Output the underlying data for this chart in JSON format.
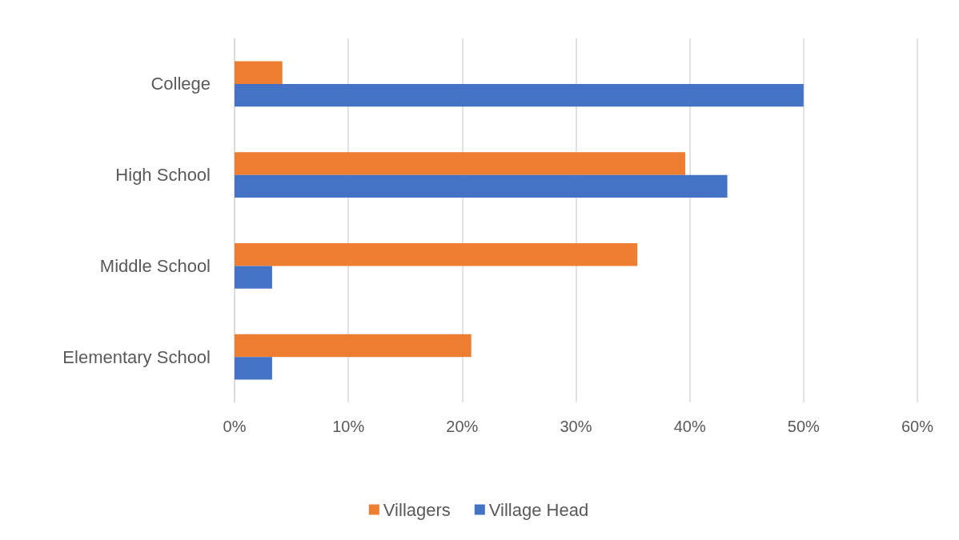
{
  "chart_data": {
    "type": "bar",
    "orientation": "horizontal",
    "categories": [
      "College",
      "High School",
      "Middle School",
      "Elementary School"
    ],
    "series": [
      {
        "name": "Villagers",
        "color": "#ed7d31",
        "values": [
          4.2,
          39.6,
          35.4,
          20.8
        ]
      },
      {
        "name": "Village Head",
        "color": "#4472c4",
        "values": [
          50,
          43.3,
          3.3,
          3.3
        ]
      }
    ],
    "xlim": [
      0,
      60
    ],
    "xticks": [
      {
        "value": 0,
        "label": "0%"
      },
      {
        "value": 10,
        "label": "10%"
      },
      {
        "value": 20,
        "label": "20%"
      },
      {
        "value": 30,
        "label": "30%"
      },
      {
        "value": 40,
        "label": "40%"
      },
      {
        "value": 50,
        "label": "50%"
      },
      {
        "value": 60,
        "label": "60%"
      }
    ],
    "grid": "x",
    "legend": "bottom"
  }
}
